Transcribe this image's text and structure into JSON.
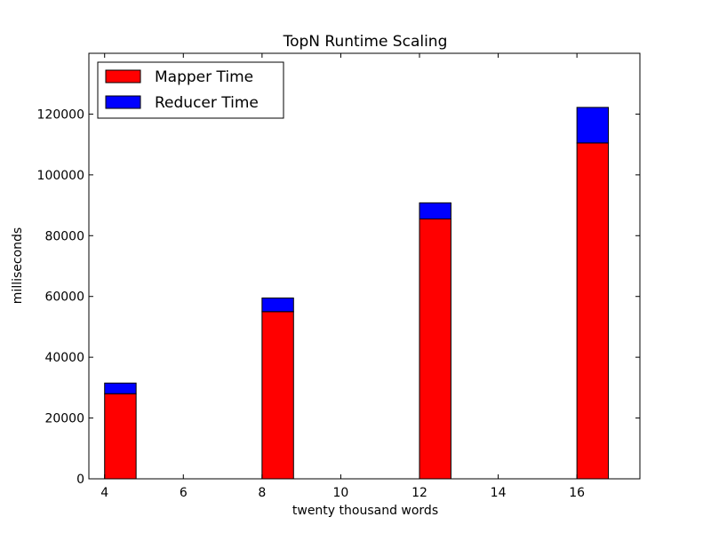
{
  "chart_data": {
    "type": "bar",
    "stacked": true,
    "title": "TopN Runtime Scaling",
    "xlabel": "twenty thousand words",
    "ylabel": "milliseconds",
    "x": [
      4,
      8,
      12,
      16
    ],
    "bar_width": 0.8,
    "series": [
      {
        "name": "Mapper Time",
        "color": "#ff0000",
        "values": [
          28000,
          55000,
          85500,
          110500
        ]
      },
      {
        "name": "Reducer Time",
        "color": "#0000ff",
        "values": [
          3500,
          4500,
          5300,
          11700
        ]
      }
    ],
    "xlim": [
      3.6,
      17.6
    ],
    "ylim": [
      0,
      140000
    ],
    "xticks": [
      4,
      6,
      8,
      10,
      12,
      14,
      16
    ],
    "yticks": [
      0,
      20000,
      40000,
      60000,
      80000,
      100000,
      120000
    ],
    "grid": false,
    "legend_position": "top-left"
  }
}
